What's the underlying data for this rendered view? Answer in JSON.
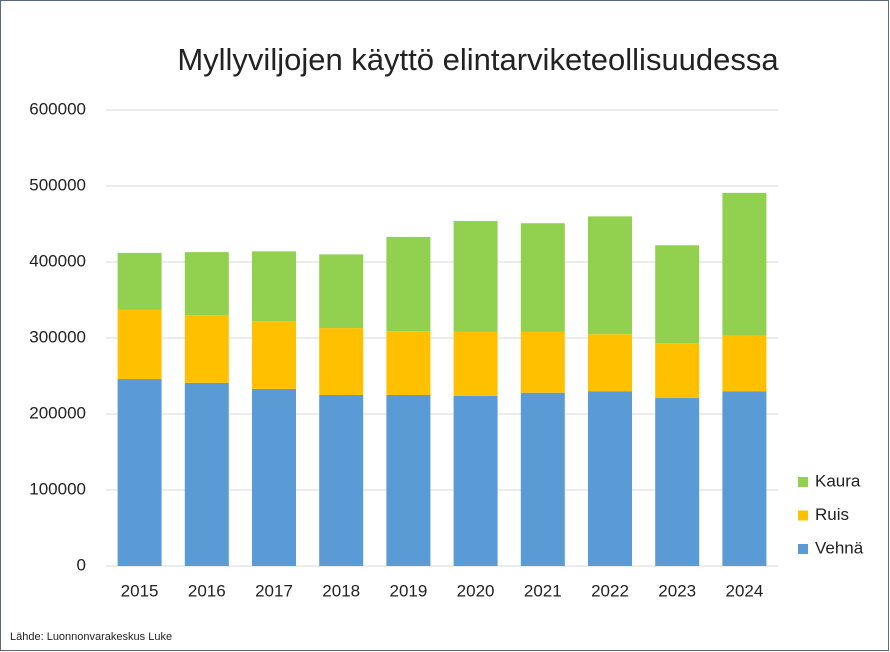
{
  "chart_data": {
    "type": "stacked_bar",
    "title": "Myllyviljojen käyttö elintarviketeollisuudessa",
    "source": "Lähde: Luonnonvarakeskus Luke",
    "categories": [
      "2015",
      "2016",
      "2017",
      "2018",
      "2019",
      "2020",
      "2021",
      "2022",
      "2023",
      "2024"
    ],
    "series": [
      {
        "name": "Vehnä",
        "color": "#5b9bd5",
        "values": [
          246000,
          241000,
          233000,
          225000,
          225000,
          224000,
          228000,
          230000,
          221000,
          230000
        ]
      },
      {
        "name": "Ruis",
        "color": "#ffc000",
        "values": [
          91000,
          89000,
          89000,
          88000,
          84000,
          84000,
          80000,
          75000,
          72000,
          73000
        ]
      },
      {
        "name": "Kaura",
        "color": "#92d050",
        "values": [
          75000,
          83000,
          92000,
          97000,
          124000,
          146000,
          143000,
          155000,
          129000,
          188000
        ]
      }
    ],
    "ylim": [
      0,
      600000
    ],
    "yticks": [
      0,
      100000,
      200000,
      300000,
      400000,
      500000,
      600000
    ],
    "grid": true,
    "legend": "right"
  }
}
